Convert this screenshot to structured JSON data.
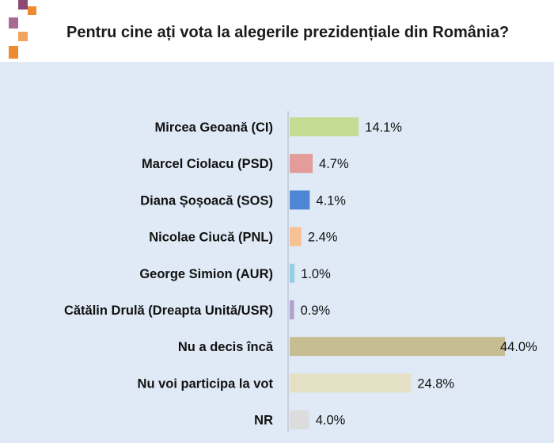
{
  "chart_data": {
    "type": "bar",
    "orientation": "horizontal",
    "title": "Pentru cine ați vota la alegerile prezidențiale din România?",
    "categories": [
      "Mircea Geoană (CI)",
      "Marcel Ciolacu (PSD)",
      "Diana Șoșoacă (SOS)",
      "Nicolae Ciucă (PNL)",
      "George Simion (AUR)",
      "Cătălin Drulă (Dreapta Unită/USR)",
      "Nu a decis încă",
      "Nu voi participa la vot",
      "NR"
    ],
    "values": [
      14.1,
      4.7,
      4.1,
      2.4,
      1.0,
      0.9,
      44.0,
      24.8,
      4.0
    ],
    "value_labels": [
      "14.1%",
      "4.7%",
      "4.1%",
      "2.4%",
      "1.0%",
      "0.9%",
      "44.0%",
      "24.8%",
      "4.0%"
    ],
    "colors": [
      "#c4dd95",
      "#e39c9a",
      "#4f86d6",
      "#f7c194",
      "#94cfe2",
      "#b2a2cd",
      "#c6bd93",
      "#e3e0c3",
      "#dcdcdc"
    ],
    "xlim": [
      0,
      44.0
    ],
    "grid": false,
    "legend": "none"
  },
  "decoration": {
    "squares": [
      {
        "color": "#8a4a75"
      },
      {
        "color": "#f08a30"
      },
      {
        "color": "#a76b93"
      },
      {
        "color": "#f4a35c"
      },
      {
        "color": "#f08a30"
      }
    ]
  }
}
